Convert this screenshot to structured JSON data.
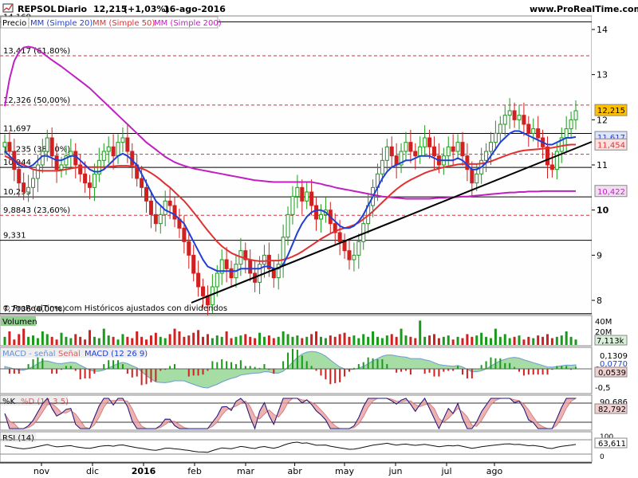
{
  "header": {
    "symbol": "REPSOL",
    "period": "Diario",
    "last": "12,215",
    "change": "(+1,03%)",
    "date": "16-ago-2016",
    "site": "www.ProRealTime.com",
    "copyright": "© ProRealTime.com Históricos ajustados con dividendos"
  },
  "legend": {
    "price": "Precio",
    "mm20": "MM (Simple 20)",
    "mm50": "MM (Simple 50)",
    "mm200": "MM (Simple 200)"
  },
  "colors": {
    "mm20": "#1f3fd6",
    "mm50": "#e03030",
    "mm200": "#c020c0",
    "up": "#1a9a1a",
    "down": "#d02020",
    "trend": "#000000",
    "last_badge": "#ffc000"
  },
  "chart_data": {
    "type": "line",
    "x_labels": [
      "nov",
      "dic",
      "2016",
      "feb",
      "mar",
      "abr",
      "may",
      "jun",
      "jul",
      "ago"
    ],
    "x_positions": [
      0.065,
      0.145,
      0.225,
      0.305,
      0.385,
      0.462,
      0.54,
      0.62,
      0.7,
      0.775
    ],
    "y_ticks": [
      "14",
      "13",
      "12",
      "11",
      "10",
      "9",
      "8"
    ],
    "ylim": [
      7.7,
      14.3
    ],
    "fib_levels": [
      {
        "label": "14,169",
        "value": 14.169,
        "style": "solid"
      },
      {
        "label": "13,417 (61,80%)",
        "value": 13.417,
        "style": "dashed"
      },
      {
        "label": "12,326 (50,00%)",
        "value": 12.326,
        "style": "dashed"
      },
      {
        "label": "11,697",
        "value": 11.697,
        "style": "solid"
      },
      {
        "label": "11,235 (38,20%)",
        "value": 11.235,
        "style": "dashed"
      },
      {
        "label": "10,944",
        "value": 10.944,
        "style": "solid"
      },
      {
        "label": "10,293",
        "value": 10.293,
        "style": "solid"
      },
      {
        "label": "9,8843 (23,60%)",
        "value": 9.8843,
        "style": "dashed"
      },
      {
        "label": "9,331",
        "value": 9.331,
        "style": "solid"
      },
      {
        "label": "7,7036 (0,00%)",
        "value": 7.7036,
        "style": "solid"
      }
    ],
    "right_labels": [
      {
        "label": "12,215",
        "value": 12.215,
        "kind": "price"
      },
      {
        "label": "11,617",
        "value": 11.617,
        "kind": "mm20"
      },
      {
        "label": "11,454",
        "value": 11.454,
        "kind": "mm50"
      },
      {
        "label": "10,422",
        "value": 10.422,
        "kind": "mm200"
      }
    ],
    "price_series": [
      11.5,
      11.3,
      10.9,
      10.6,
      10.4,
      10.5,
      10.7,
      11.0,
      11.3,
      11.6,
      11.2,
      10.9,
      11.0,
      11.2,
      11.3,
      11.0,
      10.8,
      10.6,
      10.5,
      10.8,
      11.1,
      11.3,
      11.4,
      11.2,
      11.5,
      11.6,
      11.3,
      11.0,
      10.7,
      10.5,
      10.2,
      9.9,
      9.7,
      9.9,
      10.2,
      10.1,
      9.8,
      9.6,
      9.3,
      9.0,
      8.6,
      8.3,
      8.1,
      7.9,
      8.3,
      8.6,
      8.9,
      8.7,
      8.5,
      8.8,
      9.1,
      8.9,
      8.6,
      8.4,
      8.8,
      9.0,
      8.7,
      8.5,
      8.8,
      9.4,
      9.9,
      10.3,
      10.5,
      10.2,
      10.4,
      10.1,
      9.8,
      9.9,
      10.0,
      9.7,
      9.5,
      9.3,
      9.1,
      8.9,
      9.0,
      9.3,
      9.7,
      10.1,
      10.5,
      10.8,
      11.1,
      11.4,
      11.2,
      11.0,
      11.3,
      11.5,
      11.3,
      11.2,
      11.4,
      11.6,
      11.4,
      11.2,
      11.0,
      11.2,
      11.4,
      11.3,
      11.5,
      11.2,
      10.9,
      10.6,
      10.8,
      11.1,
      11.3,
      11.5,
      11.7,
      11.9,
      12.1,
      12.2,
      12.0,
      12.1,
      11.9,
      11.7,
      11.8,
      11.6,
      11.4,
      11.0,
      10.9,
      11.3,
      11.6,
      11.8,
      12.0,
      12.2
    ],
    "mm20": [
      11.3,
      11.2,
      11.1,
      11.0,
      10.95,
      10.95,
      11.0,
      11.1,
      11.2,
      11.2,
      11.15,
      11.1,
      11.1,
      11.15,
      11.2,
      11.2,
      11.1,
      11.0,
      10.9,
      10.85,
      10.85,
      10.9,
      11.0,
      11.1,
      11.2,
      11.25,
      11.2,
      11.1,
      11.0,
      10.8,
      10.6,
      10.4,
      10.2,
      10.1,
      10.0,
      9.95,
      9.9,
      9.8,
      9.7,
      9.5,
      9.3,
      9.1,
      8.9,
      8.75,
      8.7,
      8.65,
      8.65,
      8.65,
      8.65,
      8.65,
      8.7,
      8.7,
      8.7,
      8.7,
      8.7,
      8.75,
      8.75,
      8.7,
      8.7,
      8.8,
      9.0,
      9.25,
      9.5,
      9.7,
      9.85,
      9.95,
      10.0,
      10.0,
      9.95,
      9.85,
      9.75,
      9.65,
      9.6,
      9.6,
      9.65,
      9.75,
      9.9,
      10.1,
      10.3,
      10.5,
      10.7,
      10.85,
      10.95,
      11.0,
      11.05,
      11.1,
      11.1,
      11.15,
      11.2,
      11.2,
      11.2,
      11.15,
      11.1,
      11.1,
      11.1,
      11.1,
      11.15,
      11.1,
      11.0,
      10.9,
      10.9,
      10.95,
      11.05,
      11.2,
      11.35,
      11.5,
      11.6,
      11.7,
      11.75,
      11.75,
      11.7,
      11.65,
      11.6,
      11.55,
      11.5,
      11.45,
      11.45,
      11.5,
      11.55,
      11.6,
      11.6,
      11.62
    ],
    "mm50": [
      11.2,
      11.15,
      11.1,
      11.05,
      11.0,
      10.95,
      10.9,
      10.88,
      10.87,
      10.87,
      10.87,
      10.87,
      10.88,
      10.9,
      10.92,
      10.94,
      10.95,
      10.95,
      10.95,
      10.95,
      10.95,
      10.95,
      10.96,
      10.97,
      10.98,
      10.98,
      10.98,
      10.97,
      10.95,
      10.92,
      10.88,
      10.82,
      10.75,
      10.67,
      10.58,
      10.5,
      10.4,
      10.3,
      10.2,
      10.08,
      9.95,
      9.82,
      9.68,
      9.55,
      9.42,
      9.3,
      9.2,
      9.12,
      9.05,
      9.0,
      8.96,
      8.93,
      8.9,
      8.88,
      8.87,
      8.87,
      8.88,
      8.88,
      8.88,
      8.9,
      8.93,
      8.97,
      9.02,
      9.08,
      9.15,
      9.22,
      9.29,
      9.36,
      9.42,
      9.48,
      9.53,
      9.57,
      9.6,
      9.63,
      9.67,
      9.72,
      9.8,
      9.88,
      9.97,
      10.07,
      10.17,
      10.27,
      10.37,
      10.46,
      10.54,
      10.61,
      10.67,
      10.72,
      10.77,
      10.82,
      10.86,
      10.89,
      10.92,
      10.95,
      10.97,
      10.99,
      11.01,
      11.02,
      11.02,
      11.02,
      11.02,
      11.03,
      11.05,
      11.08,
      11.12,
      11.16,
      11.2,
      11.24,
      11.27,
      11.3,
      11.32,
      11.33,
      11.34,
      11.35,
      11.36,
      11.37,
      11.38,
      11.4,
      11.42,
      11.44,
      11.45,
      11.45
    ],
    "mm200": [
      12.3,
      12.9,
      13.3,
      13.5,
      13.6,
      13.62,
      13.6,
      13.55,
      13.48,
      13.4,
      13.32,
      13.25,
      13.18,
      13.1,
      13.02,
      12.94,
      12.86,
      12.78,
      12.7,
      12.6,
      12.5,
      12.4,
      12.3,
      12.2,
      12.1,
      12.0,
      11.9,
      11.8,
      11.7,
      11.6,
      11.5,
      11.42,
      11.34,
      11.26,
      11.18,
      11.12,
      11.06,
      11.02,
      10.98,
      10.95,
      10.92,
      10.9,
      10.88,
      10.86,
      10.84,
      10.82,
      10.8,
      10.78,
      10.76,
      10.74,
      10.72,
      10.7,
      10.68,
      10.66,
      10.65,
      10.64,
      10.63,
      10.62,
      10.62,
      10.62,
      10.62,
      10.62,
      10.62,
      10.62,
      10.62,
      10.62,
      10.6,
      10.58,
      10.55,
      10.53,
      10.5,
      10.48,
      10.46,
      10.44,
      10.42,
      10.4,
      10.38,
      10.36,
      10.34,
      10.32,
      10.3,
      10.29,
      10.28,
      10.27,
      10.26,
      10.25,
      10.25,
      10.25,
      10.25,
      10.25,
      10.25,
      10.26,
      10.27,
      10.27,
      10.28,
      10.28,
      10.29,
      10.3,
      10.3,
      10.31,
      10.32,
      10.33,
      10.34,
      10.35,
      10.36,
      10.37,
      10.38,
      10.39,
      10.39,
      10.4,
      10.4,
      10.41,
      10.41,
      10.41,
      10.42,
      10.42,
      10.42,
      10.42,
      10.42,
      10.42,
      10.42,
      10.42
    ]
  },
  "volume": {
    "label": "Volumen",
    "axis": [
      "40M",
      "20M"
    ],
    "last": "7,113k",
    "bars": [
      0.3,
      0.5,
      0.2,
      0.4,
      0.6,
      0.3,
      0.35,
      0.25,
      0.5,
      0.4,
      0.3,
      0.2,
      0.45,
      0.3,
      0.25,
      0.4,
      0.3,
      0.2,
      0.55,
      0.3,
      0.25,
      0.6,
      0.35,
      0.3,
      0.2,
      0.4,
      0.3,
      0.25,
      0.5,
      0.3,
      0.2,
      0.35,
      0.45,
      0.3,
      0.25,
      0.4,
      0.6,
      0.5,
      0.3,
      0.35,
      0.45,
      0.55,
      0.3,
      0.4,
      0.25,
      0.35,
      0.3,
      0.5,
      0.25,
      0.3,
      0.35,
      0.4,
      0.3,
      0.25,
      0.45,
      0.3,
      0.35,
      0.25,
      0.3,
      0.5,
      0.4,
      0.3,
      0.35,
      0.25,
      0.3,
      0.4,
      0.5,
      0.3,
      0.25,
      0.35,
      0.3,
      0.4,
      0.45,
      0.3,
      0.35,
      0.25,
      0.4,
      0.3,
      0.5,
      0.3,
      0.25,
      0.35,
      0.4,
      0.3,
      0.6,
      0.35,
      0.3,
      0.25,
      0.9,
      0.3,
      0.35,
      0.4,
      0.25,
      0.3,
      0.35,
      0.2,
      0.3,
      0.25,
      0.4,
      0.3,
      0.35,
      0.45,
      0.3,
      0.25,
      0.6,
      0.3,
      0.4,
      0.25,
      0.3,
      0.35,
      0.2,
      0.3,
      0.25,
      0.35,
      0.3,
      0.4,
      0.25,
      0.3,
      0.35,
      0.5,
      0.3,
      0.2
    ],
    "colors": [
      "up",
      "down"
    ]
  },
  "macd": {
    "label": "MACD - señal",
    "signal_label": "Señal",
    "macd_label": "MACD (12 26 9)",
    "axis": [
      "0",
      "-0,5"
    ],
    "values": [
      "0,1309",
      "0,0770",
      "0,0539"
    ]
  },
  "stoch": {
    "label": "%K",
    "d_label": "%D (14 3 5)",
    "values": [
      "90,686",
      "82,792"
    ]
  },
  "rsi": {
    "label": "RSI (14)",
    "axis": [
      "100",
      "0"
    ],
    "value": "63,611"
  }
}
